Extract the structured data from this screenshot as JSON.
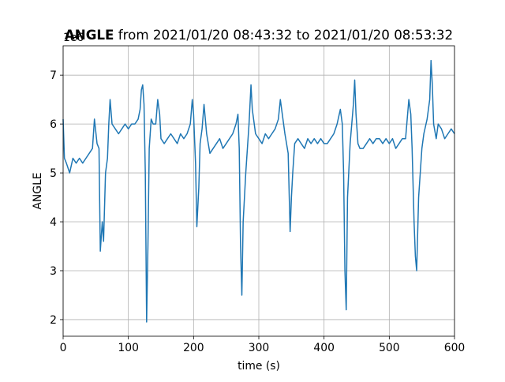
{
  "chart_data": {
    "type": "line",
    "title_bold": "ANGLE",
    "title_rest": " from 2021/01/20 08:43:32 to 2021/01/20 08:53:32",
    "x_label": "time (s)",
    "y_label": "ANGLE",
    "y_offset_label": "1e6",
    "xlim": [
      0,
      600
    ],
    "xticks": [
      0,
      100,
      200,
      300,
      400,
      500,
      600
    ],
    "ylim": [
      1.66,
      7.6
    ],
    "yticks": [
      2,
      3,
      4,
      5,
      6,
      7
    ],
    "grid": true,
    "series": [
      {
        "color": "#1f77b4",
        "x": [
          0,
          2,
          5,
          10,
          15,
          20,
          25,
          30,
          35,
          40,
          45,
          48,
          52,
          55,
          57,
          60,
          62,
          65,
          68,
          70,
          72,
          75,
          80,
          85,
          90,
          95,
          100,
          105,
          110,
          115,
          118,
          120,
          122,
          124,
          126,
          128,
          130,
          132,
          135,
          138,
          142,
          145,
          148,
          150,
          155,
          160,
          165,
          170,
          175,
          180,
          185,
          190,
          195,
          198,
          200,
          203,
          205,
          208,
          210,
          213,
          216,
          220,
          225,
          230,
          235,
          240,
          245,
          250,
          255,
          260,
          265,
          268,
          270,
          272,
          274,
          276,
          280,
          285,
          288,
          290,
          295,
          300,
          305,
          310,
          315,
          320,
          325,
          330,
          333,
          336,
          340,
          345,
          348,
          350,
          352,
          355,
          360,
          365,
          370,
          375,
          380,
          385,
          390,
          395,
          400,
          405,
          410,
          415,
          420,
          425,
          428,
          430,
          432,
          434,
          436,
          440,
          445,
          447,
          449,
          452,
          455,
          460,
          465,
          470,
          475,
          480,
          485,
          490,
          495,
          500,
          505,
          510,
          515,
          520,
          525,
          530,
          533,
          535,
          538,
          540,
          542,
          545,
          550,
          553,
          558,
          562,
          564,
          566,
          568,
          572,
          575,
          580,
          585,
          590,
          595,
          600
        ],
        "values": [
          6.1,
          5.3,
          5.2,
          5.0,
          5.3,
          5.2,
          5.3,
          5.2,
          5.3,
          5.4,
          5.5,
          6.1,
          5.6,
          5.5,
          3.4,
          4.0,
          3.6,
          5.0,
          5.3,
          6.0,
          6.5,
          6.0,
          5.9,
          5.8,
          5.9,
          6.0,
          5.9,
          6.0,
          6.0,
          6.1,
          6.3,
          6.7,
          6.8,
          6.4,
          5.0,
          1.95,
          3.5,
          5.5,
          6.1,
          6.0,
          6.0,
          6.5,
          6.2,
          5.7,
          5.6,
          5.7,
          5.8,
          5.7,
          5.6,
          5.8,
          5.7,
          5.8,
          6.0,
          6.5,
          6.2,
          5.2,
          3.9,
          4.7,
          5.6,
          5.9,
          6.4,
          5.8,
          5.4,
          5.5,
          5.6,
          5.7,
          5.5,
          5.6,
          5.7,
          5.8,
          6.0,
          6.2,
          5.5,
          3.5,
          2.5,
          4.0,
          5.0,
          6.0,
          6.8,
          6.3,
          5.8,
          5.7,
          5.6,
          5.8,
          5.7,
          5.8,
          5.9,
          6.1,
          6.5,
          6.2,
          5.8,
          5.4,
          3.8,
          4.5,
          5.0,
          5.6,
          5.7,
          5.6,
          5.5,
          5.7,
          5.6,
          5.7,
          5.6,
          5.7,
          5.6,
          5.6,
          5.7,
          5.8,
          6.0,
          6.3,
          6.0,
          5.0,
          3.0,
          2.2,
          4.5,
          5.6,
          6.4,
          6.9,
          6.2,
          5.6,
          5.5,
          5.5,
          5.6,
          5.7,
          5.6,
          5.7,
          5.7,
          5.6,
          5.7,
          5.6,
          5.7,
          5.5,
          5.6,
          5.7,
          5.7,
          6.5,
          6.2,
          5.5,
          4.0,
          3.3,
          3.0,
          4.5,
          5.5,
          5.8,
          6.1,
          6.5,
          7.3,
          6.8,
          6.0,
          5.7,
          6.0,
          5.9,
          5.7,
          5.8,
          5.9,
          5.8
        ]
      }
    ]
  }
}
